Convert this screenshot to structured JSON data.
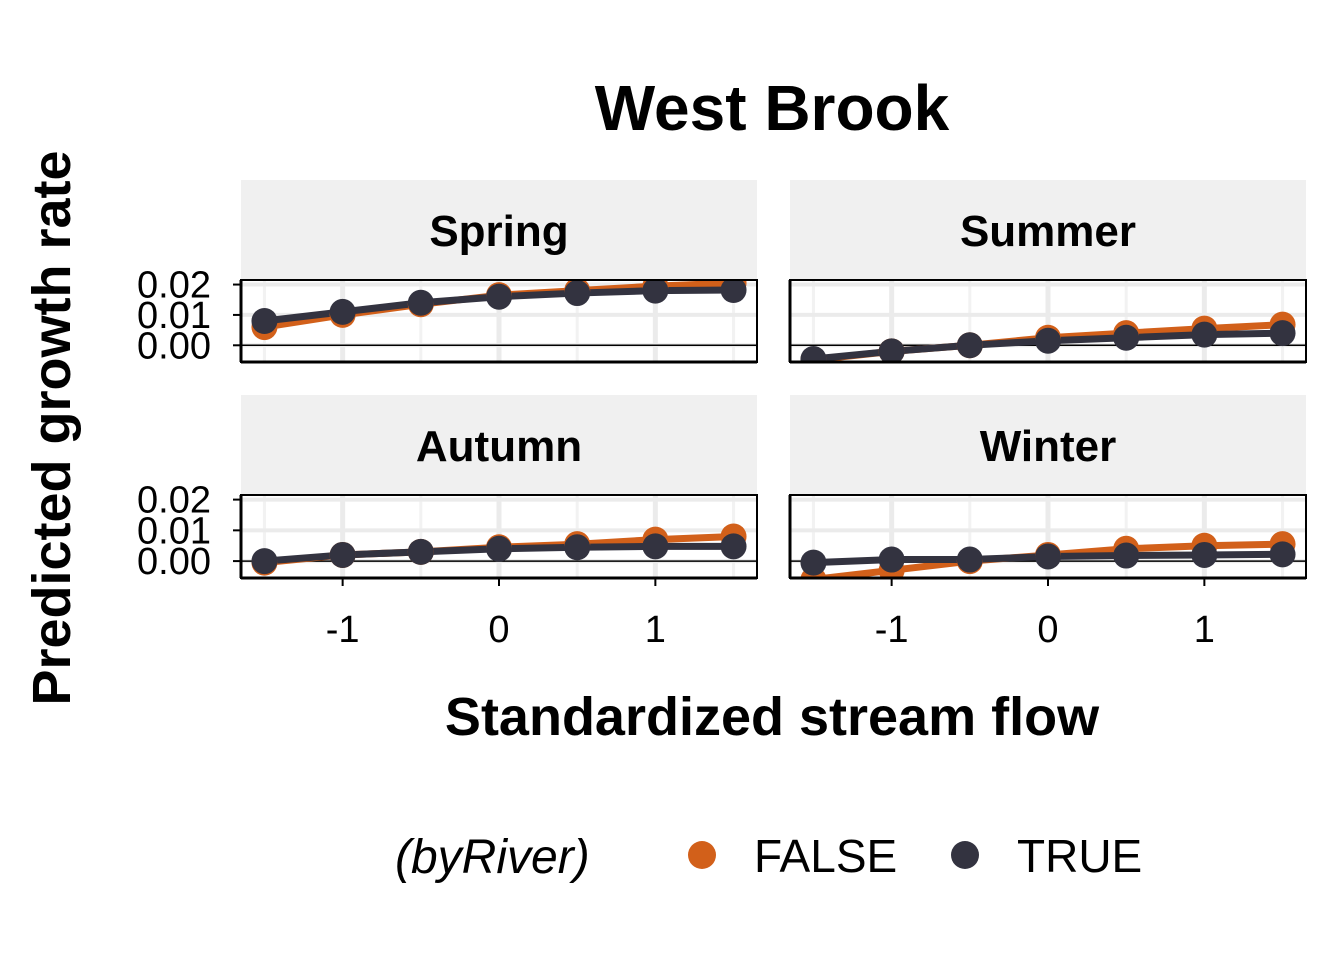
{
  "chart_data": {
    "type": "line",
    "title": "West Brook",
    "xlabel": "Standardized stream flow",
    "ylabel": "Predicted growth rate",
    "x": [
      -1.5,
      -1,
      -0.5,
      0,
      0.5,
      1,
      1.5
    ],
    "xlim": [
      -1.65,
      1.65
    ],
    "ylim": [
      -0.0055,
      0.0215
    ],
    "x_ticks": [
      -1,
      0,
      1
    ],
    "x_tick_labels": [
      "-1",
      "0",
      "1"
    ],
    "y_ticks": [
      0,
      0.01,
      0.02
    ],
    "y_tick_labels": [
      "0.00",
      "0.01",
      "0.02"
    ],
    "grid": true,
    "legend": {
      "title": "(byRiver)",
      "position": "bottom",
      "entries": [
        {
          "name": "FALSE",
          "color": "#d2601a"
        },
        {
          "name": "TRUE",
          "color": "#333340"
        }
      ]
    },
    "panels": [
      {
        "name": "Spring",
        "series": [
          {
            "name": "FALSE",
            "color": "#d2601a",
            "values": [
              0.006,
              0.01,
              0.0135,
              0.0165,
              0.018,
              0.0195,
              0.0205
            ]
          },
          {
            "name": "TRUE",
            "color": "#333340",
            "values": [
              0.008,
              0.011,
              0.014,
              0.016,
              0.0172,
              0.018,
              0.0182
            ]
          }
        ]
      },
      {
        "name": "Summer",
        "series": [
          {
            "name": "FALSE",
            "color": "#d2601a",
            "values": [
              -0.0048,
              -0.002,
              0.0,
              0.0025,
              0.004,
              0.0055,
              0.0068
            ]
          },
          {
            "name": "TRUE",
            "color": "#333340",
            "values": [
              -0.0045,
              -0.002,
              0.0,
              0.0015,
              0.0025,
              0.0035,
              0.004
            ]
          }
        ]
      },
      {
        "name": "Autumn",
        "series": [
          {
            "name": "FALSE",
            "color": "#d2601a",
            "values": [
              -0.0005,
              0.002,
              0.003,
              0.0045,
              0.0055,
              0.007,
              0.008
            ]
          },
          {
            "name": "TRUE",
            "color": "#333340",
            "values": [
              0.0,
              0.002,
              0.003,
              0.004,
              0.0045,
              0.0048,
              0.0048
            ]
          }
        ]
      },
      {
        "name": "Winter",
        "series": [
          {
            "name": "FALSE",
            "color": "#d2601a",
            "values": [
              -0.006,
              -0.003,
              0.0,
              0.002,
              0.004,
              0.005,
              0.0055
            ]
          },
          {
            "name": "TRUE",
            "color": "#333340",
            "values": [
              -0.0005,
              0.0005,
              0.0005,
              0.0015,
              0.0018,
              0.002,
              0.0022
            ]
          }
        ]
      }
    ]
  }
}
